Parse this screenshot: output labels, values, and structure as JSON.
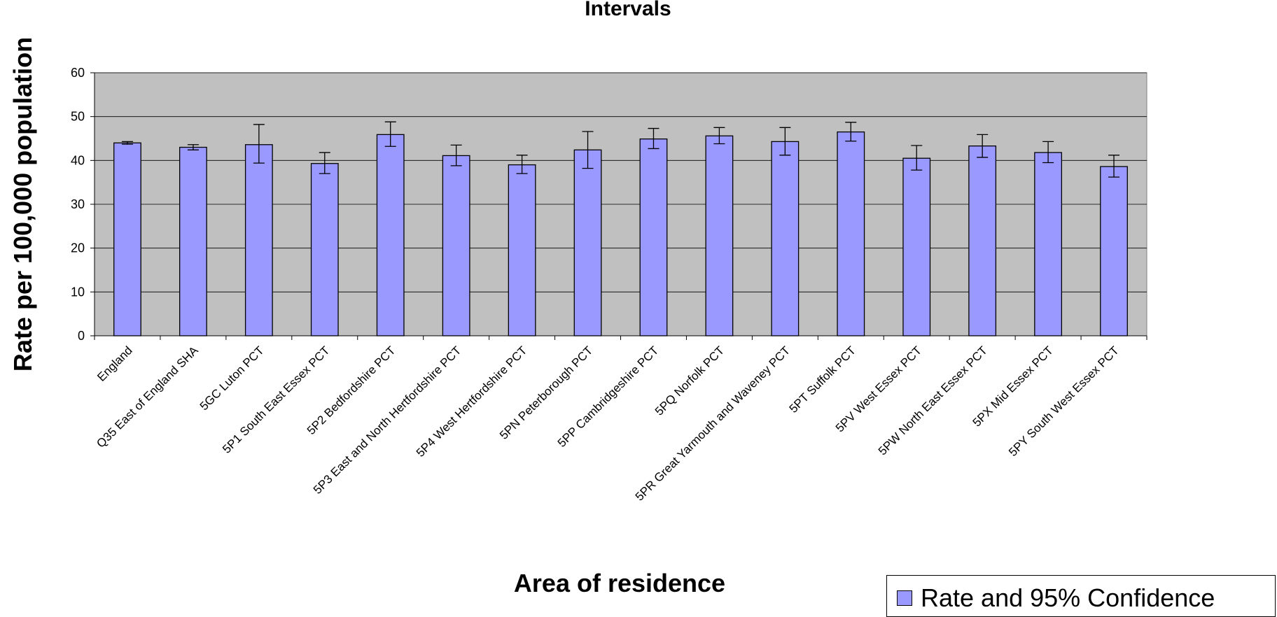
{
  "chart_data": {
    "type": "bar",
    "title": "Intervals",
    "xlabel": "Area of residence",
    "ylabel": "Rate per 100,000 population",
    "ylim": [
      0,
      60
    ],
    "yticks": [
      "0",
      "10",
      "20",
      "30",
      "40",
      "50",
      "60"
    ],
    "grid": true,
    "legend_position": "bottom-right",
    "categories": [
      "England",
      "Q35 East of England SHA",
      "5GC Luton PCT",
      "5P1 South East Essex PCT",
      "5P2 Bedfordshire PCT",
      "5P3 East and North Hertfordshire PCT",
      "5P4 West Hertfordshire PCT",
      "5PN Peterborough PCT",
      "5PP Cambridgeshire PCT",
      "5PQ Norfolk PCT",
      "5PR Great Yarmouth and Waveney PCT",
      "5PT Suffolk PCT",
      "5PV West Essex PCT",
      "5PW North East Essex PCT",
      "5PX Mid Essex PCT",
      "5PY South West Essex PCT"
    ],
    "series": [
      {
        "name": "Rate and 95% Confidence",
        "values": [
          44.0,
          43.0,
          43.6,
          39.3,
          45.9,
          41.1,
          39.0,
          42.4,
          44.9,
          45.6,
          44.3,
          46.5,
          40.5,
          43.3,
          41.8,
          38.6
        ],
        "ci_lower": [
          43.7,
          42.4,
          39.4,
          37.0,
          43.2,
          38.8,
          37.0,
          38.2,
          42.7,
          43.8,
          41.2,
          44.4,
          37.8,
          40.7,
          39.5,
          36.2
        ],
        "ci_upper": [
          44.3,
          43.6,
          48.2,
          41.8,
          48.8,
          43.5,
          41.2,
          46.6,
          47.3,
          47.5,
          47.5,
          48.7,
          43.4,
          45.9,
          44.3,
          41.2
        ]
      }
    ],
    "colors": {
      "bar_fill": "#9999ff",
      "plot_background": "#c0c0c0",
      "grid_line": "#000000",
      "outline": "#000000"
    }
  }
}
